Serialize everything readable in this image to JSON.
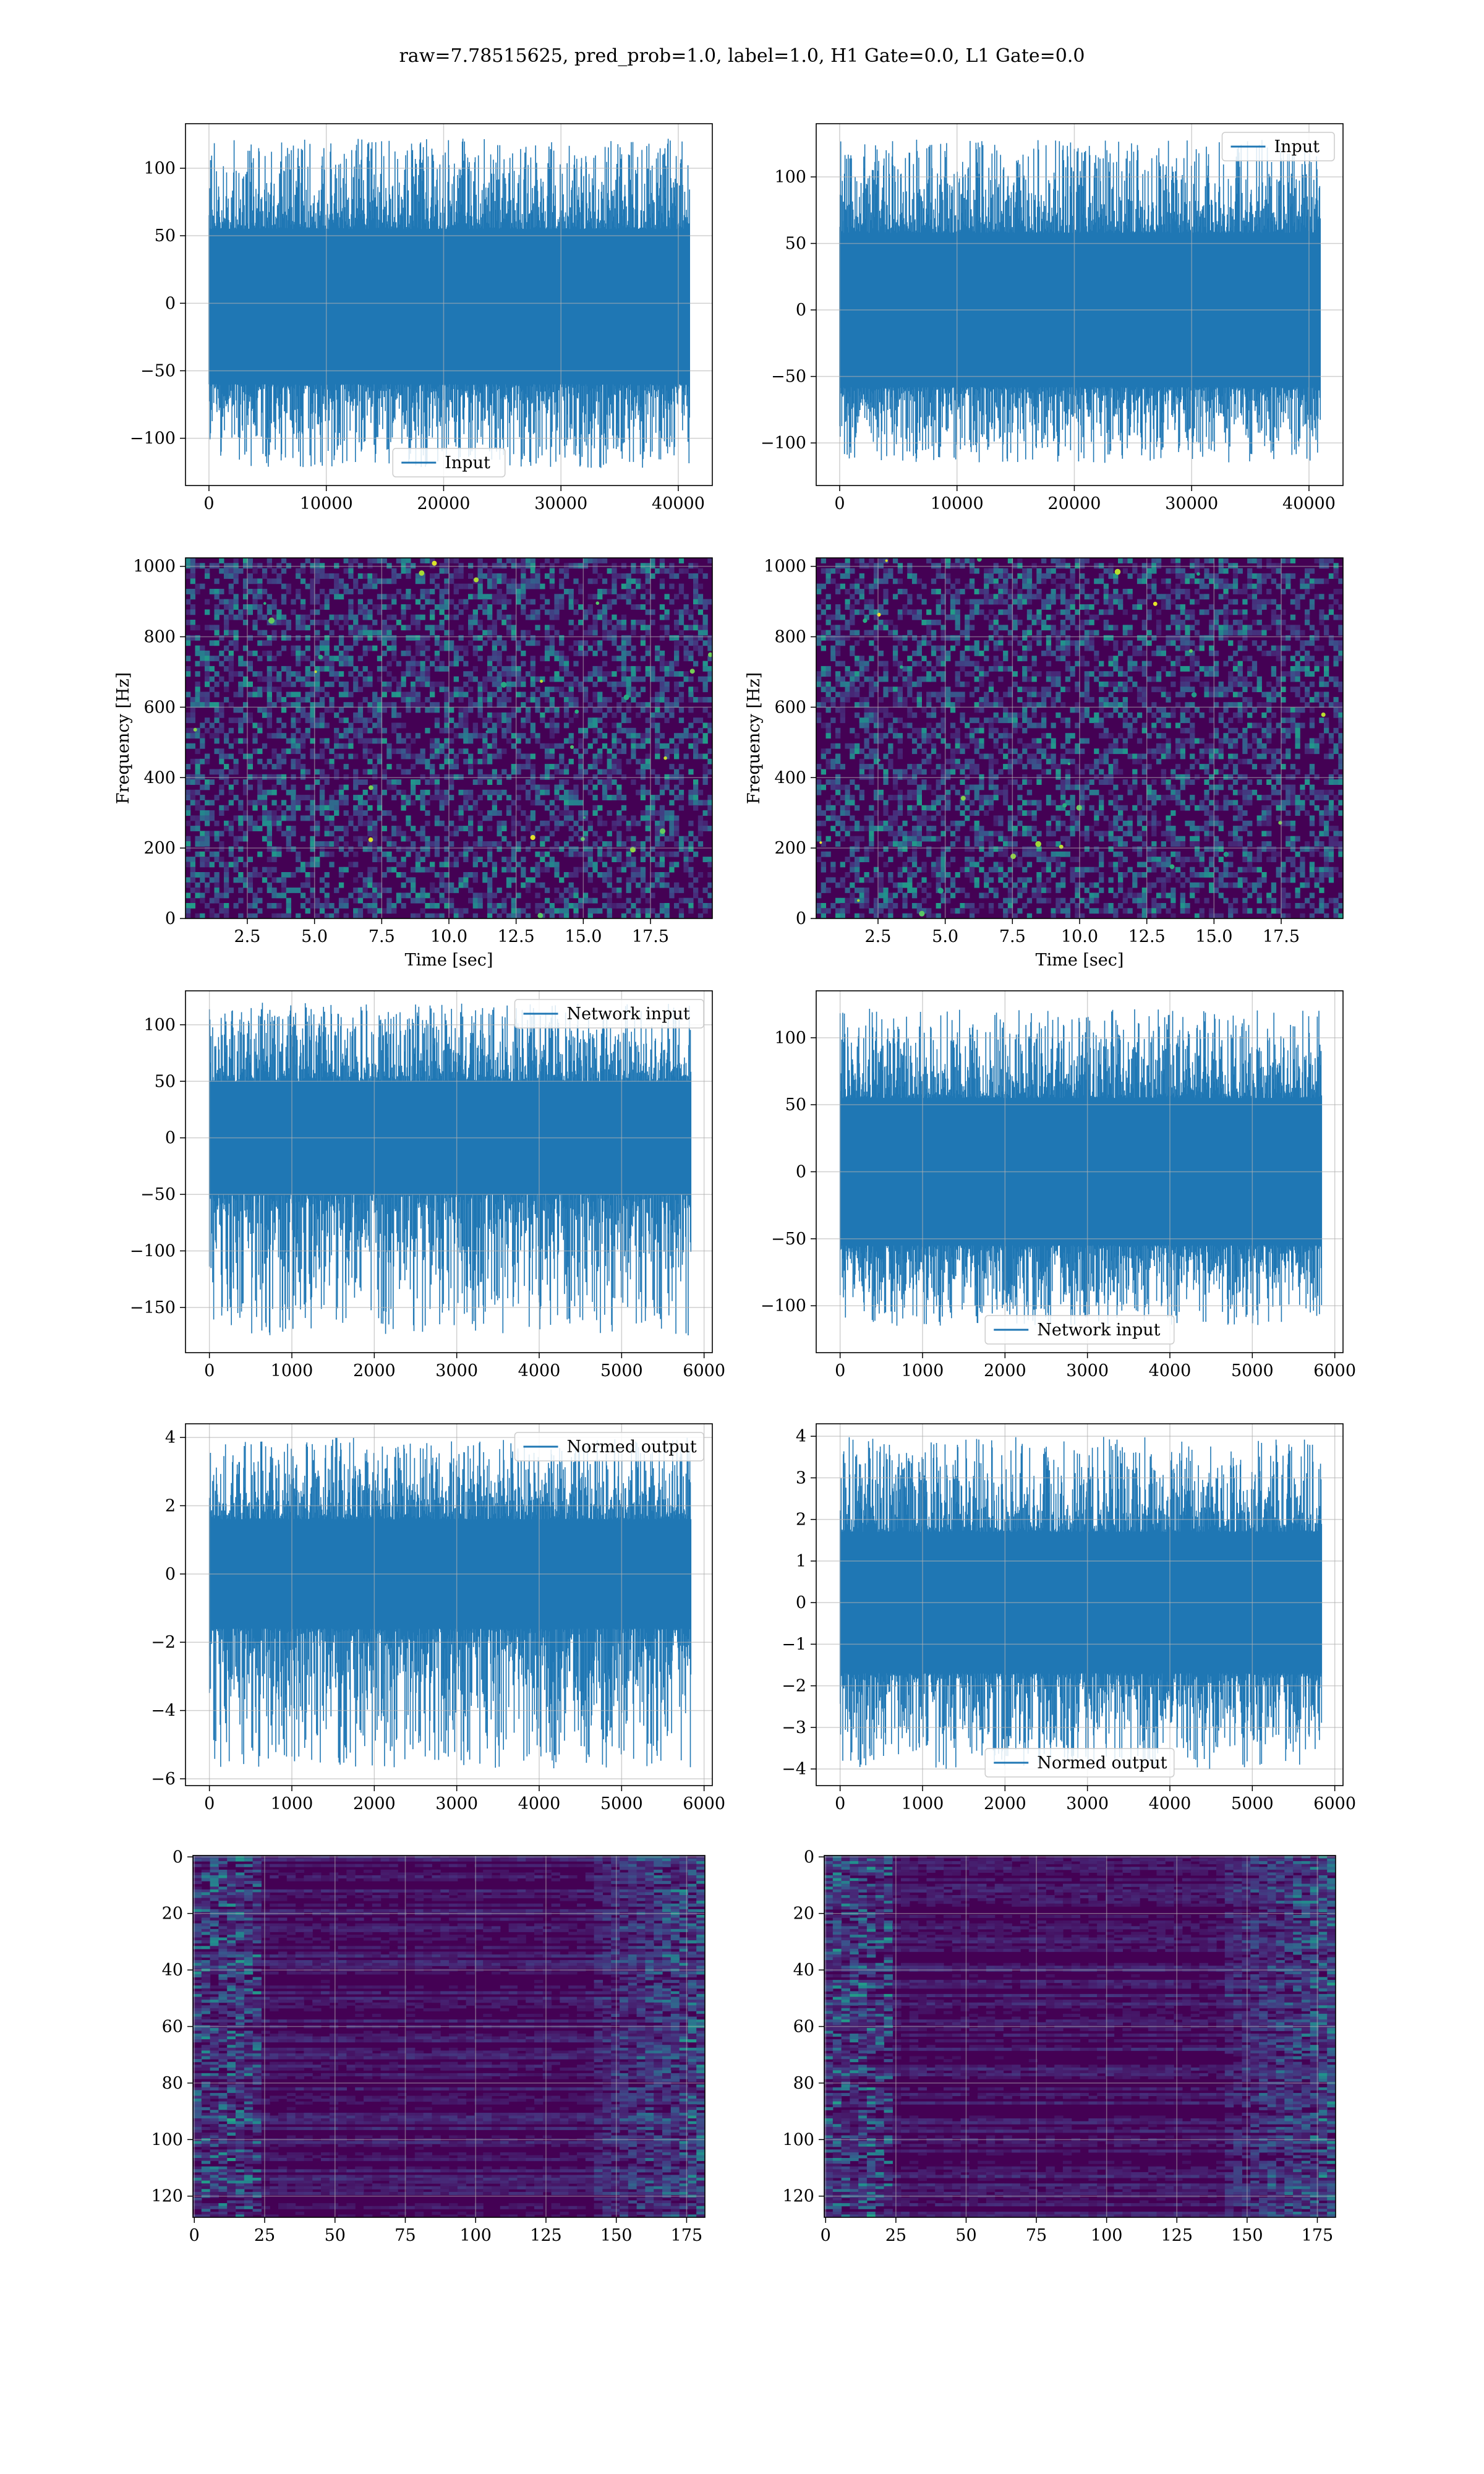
{
  "figure": {
    "title": "raw=7.78515625, pred_prob=1.0, label=1.0, H1 Gate=0.0, L1 Gate=0.0",
    "colors": {
      "line": "#1f77b4",
      "grid": "#b0b0b0",
      "viridis_low": "#440154",
      "viridis_mid": "#21918c",
      "viridis_high": "#fde725"
    }
  },
  "chart_data": [
    {
      "type": "line",
      "id": "input-h1",
      "legend": "Input",
      "legend_position": "lower center",
      "xlim": [
        -2000,
        42900
      ],
      "ylim": [
        -135,
        133
      ],
      "xticks": [
        0,
        10000,
        20000,
        30000,
        40000
      ],
      "yticks": [
        -100,
        -50,
        0,
        50,
        100
      ],
      "x_range": [
        0,
        40959
      ],
      "band": [
        -60,
        55
      ],
      "peak_range": [
        -122,
        122
      ],
      "grid": true
    },
    {
      "type": "line",
      "id": "input-l1",
      "legend": "Input",
      "legend_position": "upper right",
      "xlim": [
        -2000,
        42900
      ],
      "ylim": [
        -132,
        140
      ],
      "xticks": [
        0,
        10000,
        20000,
        30000,
        40000
      ],
      "yticks": [
        -100,
        -50,
        0,
        50,
        100
      ],
      "x_range": [
        0,
        40959
      ],
      "band": [
        -58,
        58
      ],
      "peak_range": [
        -115,
        128
      ],
      "grid": true
    },
    {
      "type": "heatmap",
      "id": "qtransform-h1",
      "xlabel": "Time [sec]",
      "ylabel": "Frequency [Hz]",
      "xlim": [
        0.2,
        19.8
      ],
      "ylim": [
        0,
        1024
      ],
      "xticks": [
        2.5,
        5.0,
        7.5,
        10.0,
        12.5,
        15.0,
        17.5
      ],
      "yticks": [
        0,
        200,
        400,
        600,
        800,
        1000
      ],
      "grid": true,
      "colormap": "viridis"
    },
    {
      "type": "heatmap",
      "id": "qtransform-l1",
      "xlabel": "Time [sec]",
      "ylabel": "Frequency [Hz]",
      "xlim": [
        0.2,
        19.8
      ],
      "ylim": [
        0,
        1024
      ],
      "xticks": [
        2.5,
        5.0,
        7.5,
        10.0,
        12.5,
        15.0,
        17.5
      ],
      "yticks": [
        0,
        200,
        400,
        600,
        800,
        1000
      ],
      "grid": true,
      "colormap": "viridis"
    },
    {
      "type": "line",
      "id": "network-input-h1",
      "legend": "Network input",
      "legend_position": "upper right",
      "xlim": [
        -290,
        6100
      ],
      "ylim": [
        -190,
        130
      ],
      "xticks": [
        0,
        1000,
        2000,
        3000,
        4000,
        5000,
        6000
      ],
      "yticks": [
        -150,
        -100,
        -50,
        0,
        50,
        100
      ],
      "x_range": [
        0,
        5840
      ],
      "band": [
        -50,
        50
      ],
      "peak_range": [
        -175,
        120
      ],
      "grid": true
    },
    {
      "type": "line",
      "id": "network-input-l1",
      "legend": "Network input",
      "legend_position": "lower center",
      "xlim": [
        -290,
        6100
      ],
      "ylim": [
        -135,
        135
      ],
      "xticks": [
        0,
        1000,
        2000,
        3000,
        4000,
        5000,
        6000
      ],
      "yticks": [
        -100,
        -50,
        0,
        50,
        100
      ],
      "x_range": [
        0,
        5840
      ],
      "band": [
        -55,
        55
      ],
      "peak_range": [
        -115,
        122
      ],
      "grid": true
    },
    {
      "type": "line",
      "id": "normed-output-h1",
      "legend": "Normed output",
      "legend_position": "upper right",
      "xlim": [
        -290,
        6100
      ],
      "ylim": [
        -6.2,
        4.4
      ],
      "xticks": [
        0,
        1000,
        2000,
        3000,
        4000,
        5000,
        6000
      ],
      "yticks": [
        -6,
        -4,
        -2,
        0,
        2,
        4
      ],
      "x_range": [
        0,
        5840
      ],
      "band": [
        -1.6,
        1.6
      ],
      "peak_range": [
        -5.7,
        4.0
      ],
      "grid": true
    },
    {
      "type": "line",
      "id": "normed-output-l1",
      "legend": "Normed output",
      "legend_position": "lower center",
      "xlim": [
        -290,
        6100
      ],
      "ylim": [
        -4.4,
        4.3
      ],
      "xticks": [
        0,
        1000,
        2000,
        3000,
        4000,
        5000,
        6000
      ],
      "yticks": [
        -4,
        -3,
        -2,
        -1,
        0,
        1,
        2,
        3,
        4
      ],
      "x_range": [
        0,
        5840
      ],
      "band": [
        -1.7,
        1.7
      ],
      "peak_range": [
        -4.0,
        4.0
      ],
      "grid": true
    },
    {
      "type": "heatmap",
      "id": "features-h1",
      "xlim": [
        -0.5,
        181.5
      ],
      "ylim": [
        127.5,
        -0.5
      ],
      "y_inverted": true,
      "xticks": [
        0,
        25,
        50,
        75,
        100,
        125,
        150,
        175
      ],
      "yticks": [
        0,
        20,
        40,
        60,
        80,
        100,
        120
      ],
      "grid": true,
      "colormap": "viridis"
    },
    {
      "type": "heatmap",
      "id": "features-l1",
      "xlim": [
        -0.5,
        181.5
      ],
      "ylim": [
        127.5,
        -0.5
      ],
      "y_inverted": true,
      "xticks": [
        0,
        25,
        50,
        75,
        100,
        125,
        150,
        175
      ],
      "yticks": [
        0,
        20,
        40,
        60,
        80,
        100,
        120
      ],
      "grid": true,
      "colormap": "viridis"
    }
  ]
}
